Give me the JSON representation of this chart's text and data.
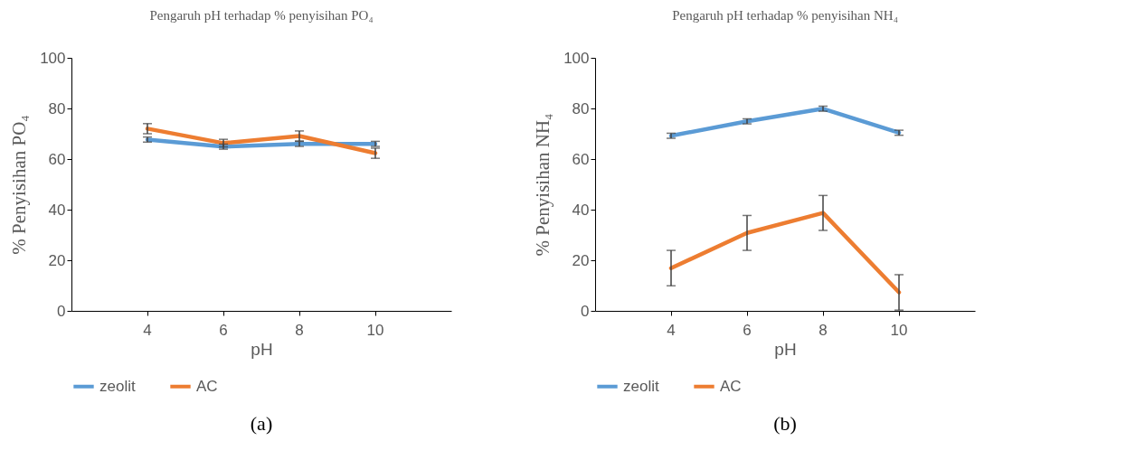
{
  "chart_data": [
    {
      "type": "line",
      "title": "Pengaruh pH terhadap % penyisihan PO₄",
      "xlabel": "pH",
      "ylabel": "% Penyisihan PO₄",
      "categories": [
        "4",
        "6",
        "8",
        "10"
      ],
      "series": [
        {
          "name": "zeolit",
          "color": "#5b9bd5",
          "values": [
            67.7,
            64.9,
            66.0,
            66.0
          ],
          "errors": [
            1,
            1,
            1,
            1
          ]
        },
        {
          "name": "AC",
          "color": "#ed7d31",
          "values": [
            72.0,
            66.3,
            69.1,
            62.3
          ],
          "errors": [
            2,
            1.5,
            2,
            2
          ]
        }
      ],
      "ylim": [
        0,
        100
      ],
      "yticks": [
        0,
        20,
        40,
        60,
        80,
        100
      ],
      "grid": false,
      "legend": "bottom",
      "marker": "none",
      "line_style": "solid",
      "annotations": [
        "(a)"
      ]
    },
    {
      "type": "line",
      "title": "Pengaruh pH terhadap % penyisihan NH₄",
      "xlabel": "pH",
      "ylabel": "% Penyisihan NH₄",
      "categories": [
        "4",
        "6",
        "8",
        "10"
      ],
      "series": [
        {
          "name": "zeolit",
          "color": "#5b9bd5",
          "values": [
            69.2,
            74.9,
            79.9,
            70.4
          ],
          "errors": [
            1,
            1,
            1,
            1
          ]
        },
        {
          "name": "AC",
          "color": "#ed7d31",
          "values": [
            16.9,
            30.8,
            38.7,
            7.3
          ],
          "errors": [
            7,
            6.9,
            6.9,
            7
          ]
        }
      ],
      "ylim": [
        0,
        100
      ],
      "yticks": [
        0,
        20,
        40,
        60,
        80,
        100
      ],
      "grid": false,
      "legend": "bottom",
      "marker": "none",
      "line_style": "solid",
      "annotations": [
        "(b)"
      ]
    }
  ]
}
